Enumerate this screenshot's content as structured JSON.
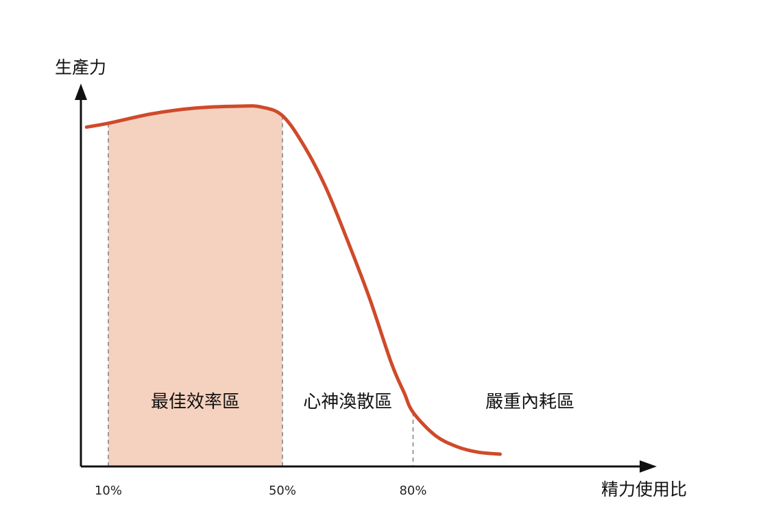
{
  "colors": {
    "curve": "#cf4a2a",
    "highlight_fill": "#f5d2bf",
    "axis": "#111111",
    "guide": "#999999"
  },
  "chart_data": {
    "type": "line",
    "title": "",
    "xlabel": "精力使用比",
    "ylabel": "生產力",
    "xlim": [
      0,
      100
    ],
    "ylim": [
      0,
      100
    ],
    "grid": false,
    "x_ticks": [
      {
        "value": 10,
        "label": "10%"
      },
      {
        "value": 50,
        "label": "50%"
      },
      {
        "value": 80,
        "label": "80%"
      }
    ],
    "series": [
      {
        "x": [
          5,
          10,
          20,
          30,
          40,
          45,
          50,
          55,
          60,
          65,
          70,
          75,
          78,
          80,
          85,
          90,
          95,
          100
        ],
        "y": [
          90,
          91,
          93.5,
          95,
          95.5,
          95.3,
          93,
          85,
          74,
          60,
          45,
          28,
          20,
          15,
          9,
          6,
          4.5,
          4
        ]
      }
    ],
    "highlight_range": [
      10,
      50
    ],
    "zones": [
      {
        "label": "最佳效率區",
        "x_from": 10,
        "x_to": 50
      },
      {
        "label": "心神渙散區",
        "x_from": 50,
        "x_to": 80
      },
      {
        "label": "嚴重內耗區",
        "x_from": 80,
        "x_to": 110
      }
    ]
  }
}
